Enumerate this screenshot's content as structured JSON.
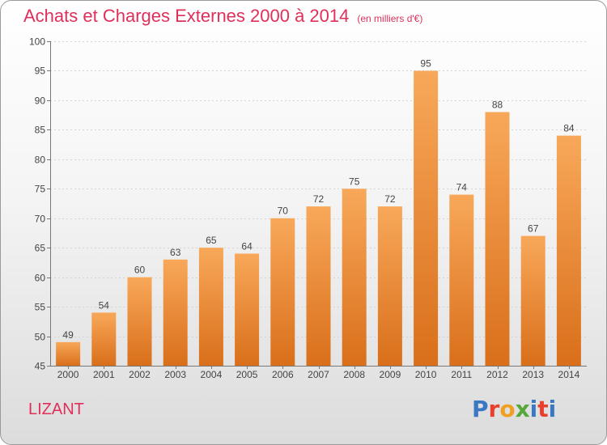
{
  "header": {
    "title": "Achats et Charges Externes 2000 à 2014",
    "unit": "(en milliers d'€)"
  },
  "footer": {
    "location": "LIZANT",
    "brand": "Proxiti"
  },
  "colors": {
    "accent": "#e0305a",
    "bar_light": "#f8a85a",
    "bar_dark": "#d96f1a",
    "brand_letters": [
      "#3a78c4",
      "#e8402c",
      "#f0a020",
      "#57a83a",
      "#3a78c4",
      "#e8402c",
      "#3a78c4"
    ]
  },
  "chart_data": {
    "type": "bar",
    "categories": [
      "2000",
      "2001",
      "2002",
      "2003",
      "2004",
      "2005",
      "2006",
      "2007",
      "2008",
      "2009",
      "2010",
      "2011",
      "2012",
      "2013",
      "2014"
    ],
    "values": [
      49,
      54,
      60,
      63,
      65,
      64,
      70,
      72,
      75,
      72,
      95,
      74,
      88,
      67,
      84
    ],
    "title": "Achats et Charges Externes 2000 à 2014",
    "ylim": [
      45,
      100
    ],
    "yticks": [
      45,
      50,
      55,
      60,
      65,
      70,
      75,
      80,
      85,
      90,
      95,
      100
    ],
    "grid": true,
    "data_labels": true
  }
}
